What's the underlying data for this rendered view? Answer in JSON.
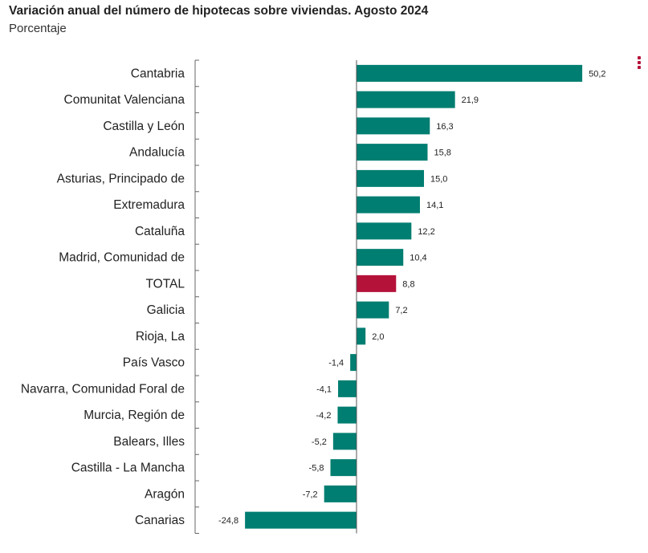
{
  "header": {
    "title": "Variación anual del número de hipotecas sobre viviendas. Agosto 2024",
    "subtitle": "Porcentaje"
  },
  "menu_icon": "more-vertical-icon",
  "colors": {
    "bar": "#007e71",
    "highlight": "#b5123a",
    "axis": "#666666"
  },
  "chart_data": {
    "type": "bar",
    "orientation": "horizontal",
    "title": "Variación anual del número de hipotecas sobre viviendas. Agosto 2024",
    "subtitle": "Porcentaje",
    "xlim": [
      -25,
      51
    ],
    "grid": false,
    "highlight_category": "TOTAL",
    "categories": [
      "Cantabria",
      "Comunitat Valenciana",
      "Castilla y León",
      "Andalucía",
      "Asturias, Principado de",
      "Extremadura",
      "Cataluña",
      "Madrid, Comunidad de",
      "TOTAL",
      "Galicia",
      "Rioja, La",
      "País Vasco",
      "Navarra, Comunidad Foral de",
      "Murcia, Región de",
      "Balears, Illes",
      "Castilla - La Mancha",
      "Aragón",
      "Canarias"
    ],
    "values": [
      50.2,
      21.9,
      16.3,
      15.8,
      15.0,
      14.1,
      12.2,
      10.4,
      8.8,
      7.2,
      2.0,
      -1.4,
      -4.1,
      -4.2,
      -5.2,
      -5.8,
      -7.2,
      -24.8
    ],
    "labels": [
      "50,2",
      "21,9",
      "16,3",
      "15,8",
      "15,0",
      "14,1",
      "12,2",
      "10,4",
      "8,8",
      "7,2",
      "2,0",
      "-1,4",
      "-4,1",
      "-4,2",
      "-5,2",
      "-5,8",
      "-7,2",
      "-24,8"
    ]
  }
}
